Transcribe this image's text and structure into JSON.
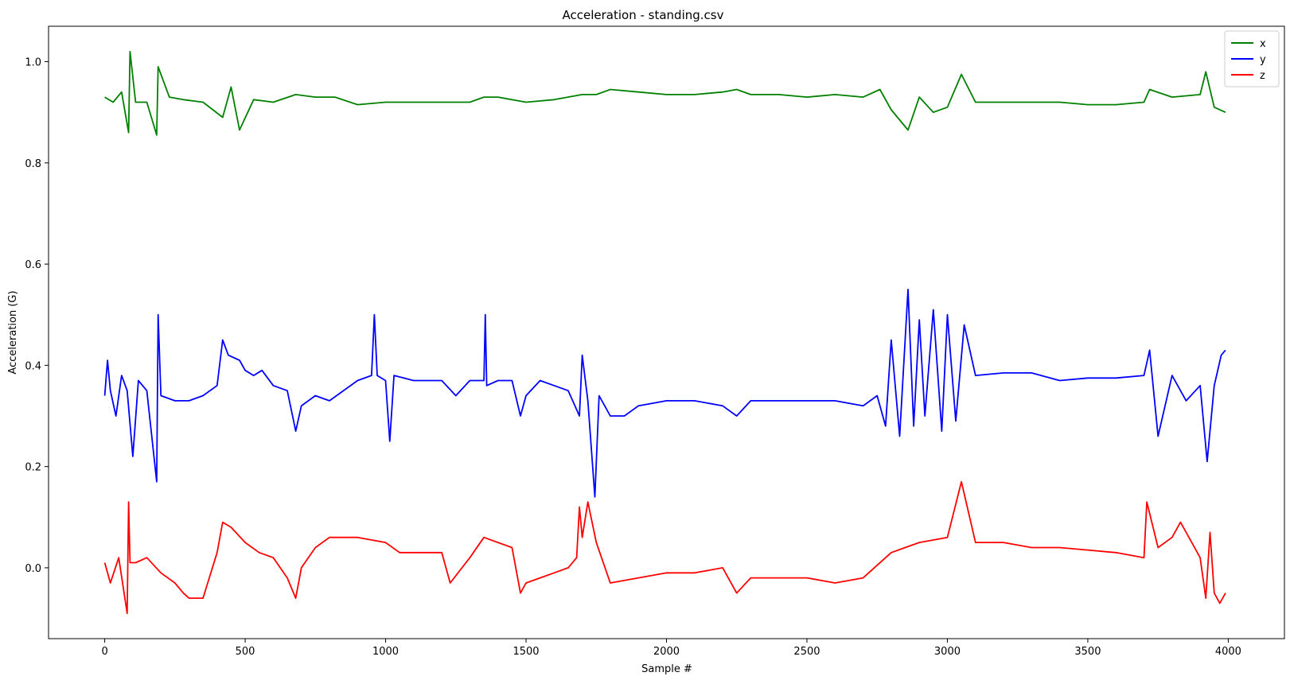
{
  "chart_data": {
    "type": "line",
    "title": "Acceleration - standing.csv",
    "xlabel": "Sample #",
    "ylabel": "Acceleration (G)",
    "xlim": [
      -200,
      4200
    ],
    "ylim": [
      -0.14,
      1.07
    ],
    "xticks": [
      0,
      500,
      1000,
      1500,
      2000,
      2500,
      3000,
      3500,
      4000
    ],
    "yticks": [
      0.0,
      0.2,
      0.4,
      0.6,
      0.8,
      1.0
    ],
    "xtick_labels": [
      "0",
      "500",
      "1000",
      "1500",
      "2000",
      "2500",
      "3000",
      "3500",
      "4000"
    ],
    "ytick_labels": [
      "0.0",
      "0.2",
      "0.4",
      "0.6",
      "0.8",
      "1.0"
    ],
    "grid": false,
    "legend_position": "top-right",
    "series": [
      {
        "name": "x",
        "color": "#008000",
        "x": [
          0,
          30,
          60,
          85,
          90,
          110,
          150,
          185,
          190,
          230,
          280,
          350,
          420,
          450,
          480,
          530,
          600,
          680,
          750,
          820,
          900,
          1000,
          1100,
          1200,
          1300,
          1350,
          1400,
          1500,
          1600,
          1700,
          1750,
          1800,
          1900,
          2000,
          2100,
          2200,
          2250,
          2300,
          2400,
          2500,
          2600,
          2700,
          2760,
          2800,
          2860,
          2900,
          2950,
          3000,
          3050,
          3100,
          3200,
          3300,
          3400,
          3500,
          3600,
          3700,
          3720,
          3800,
          3900,
          3920,
          3950,
          3990
        ],
        "y": [
          0.93,
          0.92,
          0.94,
          0.86,
          1.02,
          0.92,
          0.92,
          0.855,
          0.99,
          0.93,
          0.925,
          0.92,
          0.89,
          0.95,
          0.865,
          0.925,
          0.92,
          0.935,
          0.93,
          0.93,
          0.915,
          0.92,
          0.92,
          0.92,
          0.92,
          0.93,
          0.93,
          0.92,
          0.925,
          0.935,
          0.935,
          0.945,
          0.94,
          0.935,
          0.935,
          0.94,
          0.945,
          0.935,
          0.935,
          0.93,
          0.935,
          0.93,
          0.945,
          0.905,
          0.865,
          0.93,
          0.9,
          0.91,
          0.975,
          0.92,
          0.92,
          0.92,
          0.92,
          0.915,
          0.915,
          0.92,
          0.945,
          0.93,
          0.935,
          0.98,
          0.91,
          0.9
        ]
      },
      {
        "name": "y",
        "color": "#0000ff",
        "x": [
          0,
          10,
          20,
          40,
          60,
          80,
          100,
          120,
          150,
          185,
          190,
          200,
          250,
          300,
          350,
          400,
          420,
          440,
          480,
          500,
          530,
          560,
          600,
          650,
          680,
          700,
          750,
          800,
          900,
          950,
          960,
          970,
          1000,
          1015,
          1030,
          1100,
          1200,
          1250,
          1300,
          1350,
          1355,
          1360,
          1400,
          1450,
          1480,
          1500,
          1550,
          1600,
          1650,
          1690,
          1700,
          1720,
          1745,
          1760,
          1800,
          1850,
          1900,
          2000,
          2100,
          2200,
          2250,
          2300,
          2400,
          2500,
          2600,
          2700,
          2750,
          2780,
          2800,
          2830,
          2860,
          2880,
          2900,
          2920,
          2950,
          2980,
          3000,
          3030,
          3060,
          3100,
          3200,
          3300,
          3400,
          3500,
          3600,
          3700,
          3720,
          3750,
          3800,
          3850,
          3900,
          3925,
          3950,
          3975,
          3990
        ],
        "y": [
          0.34,
          0.41,
          0.35,
          0.3,
          0.38,
          0.35,
          0.22,
          0.37,
          0.35,
          0.17,
          0.5,
          0.34,
          0.33,
          0.33,
          0.34,
          0.36,
          0.45,
          0.42,
          0.41,
          0.39,
          0.38,
          0.39,
          0.36,
          0.35,
          0.27,
          0.32,
          0.34,
          0.33,
          0.37,
          0.38,
          0.5,
          0.38,
          0.37,
          0.25,
          0.38,
          0.37,
          0.37,
          0.34,
          0.37,
          0.37,
          0.5,
          0.36,
          0.37,
          0.37,
          0.3,
          0.34,
          0.37,
          0.36,
          0.35,
          0.3,
          0.42,
          0.33,
          0.14,
          0.34,
          0.3,
          0.3,
          0.32,
          0.33,
          0.33,
          0.32,
          0.3,
          0.33,
          0.33,
          0.33,
          0.33,
          0.32,
          0.34,
          0.28,
          0.45,
          0.26,
          0.55,
          0.28,
          0.49,
          0.3,
          0.51,
          0.27,
          0.5,
          0.29,
          0.48,
          0.38,
          0.385,
          0.385,
          0.37,
          0.375,
          0.375,
          0.38,
          0.43,
          0.26,
          0.38,
          0.33,
          0.36,
          0.21,
          0.36,
          0.42,
          0.43
        ]
      },
      {
        "name": "z",
        "color": "#ff0000",
        "x": [
          0,
          20,
          50,
          80,
          85,
          90,
          110,
          150,
          200,
          250,
          280,
          300,
          350,
          400,
          420,
          450,
          500,
          550,
          600,
          650,
          680,
          700,
          750,
          800,
          900,
          1000,
          1050,
          1100,
          1200,
          1230,
          1300,
          1350,
          1400,
          1450,
          1480,
          1500,
          1550,
          1600,
          1650,
          1680,
          1690,
          1700,
          1720,
          1750,
          1800,
          1900,
          2000,
          2100,
          2200,
          2250,
          2300,
          2400,
          2500,
          2600,
          2700,
          2800,
          2900,
          3000,
          3050,
          3100,
          3200,
          3300,
          3400,
          3500,
          3600,
          3700,
          3710,
          3750,
          3800,
          3830,
          3860,
          3900,
          3920,
          3935,
          3950,
          3970,
          3990
        ],
        "y": [
          0.01,
          -0.03,
          0.02,
          -0.09,
          0.13,
          0.01,
          0.01,
          0.02,
          -0.01,
          -0.03,
          -0.05,
          -0.06,
          -0.06,
          0.03,
          0.09,
          0.08,
          0.05,
          0.03,
          0.02,
          -0.02,
          -0.06,
          0.0,
          0.04,
          0.06,
          0.06,
          0.05,
          0.03,
          0.03,
          0.03,
          -0.03,
          0.02,
          0.06,
          0.05,
          0.04,
          -0.05,
          -0.03,
          -0.02,
          -0.01,
          0.0,
          0.02,
          0.12,
          0.06,
          0.13,
          0.05,
          -0.03,
          -0.02,
          -0.01,
          -0.01,
          0.0,
          -0.05,
          -0.02,
          -0.02,
          -0.02,
          -0.03,
          -0.02,
          0.03,
          0.05,
          0.06,
          0.17,
          0.05,
          0.05,
          0.04,
          0.04,
          0.035,
          0.03,
          0.02,
          0.13,
          0.04,
          0.06,
          0.09,
          0.06,
          0.02,
          -0.06,
          0.07,
          -0.05,
          -0.07,
          -0.05
        ]
      }
    ]
  }
}
